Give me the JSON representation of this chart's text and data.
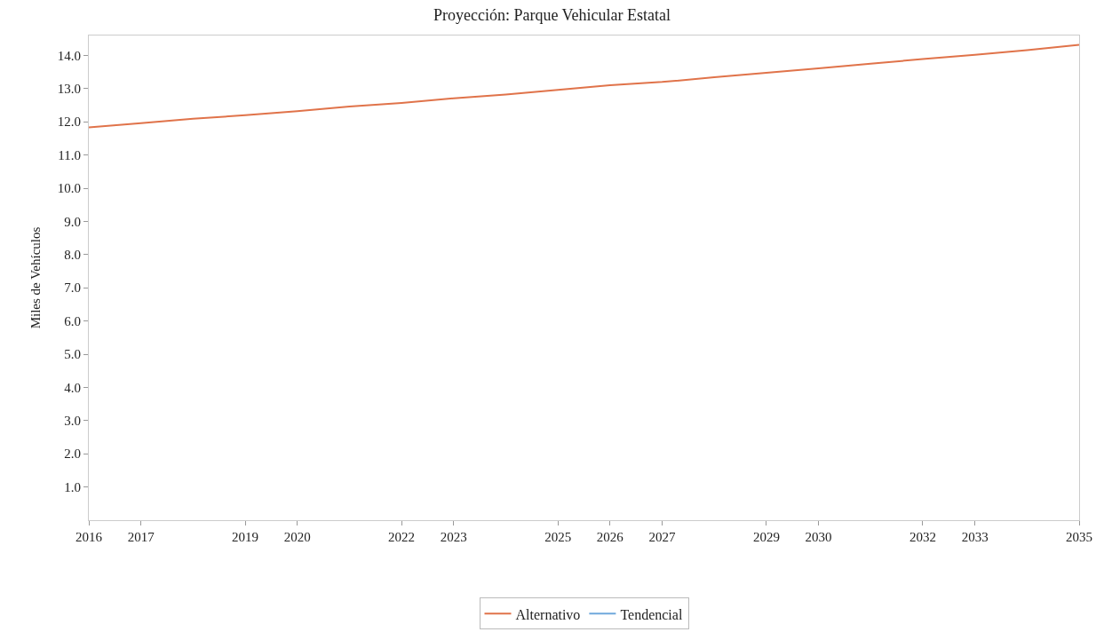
{
  "chart_data": {
    "type": "line",
    "title": "Proyección: Parque Vehicular Estatal",
    "ylabel": "Miles de Vehículos",
    "x": [
      2016,
      2017,
      2018,
      2019,
      2020,
      2021,
      2022,
      2023,
      2024,
      2025,
      2026,
      2027,
      2028,
      2029,
      2030,
      2031,
      2032,
      2033,
      2034,
      2035
    ],
    "series": [
      {
        "name": "Alternativo",
        "color": "#e0734a",
        "values": [
          11.83,
          11.96,
          12.09,
          12.2,
          12.32,
          12.46,
          12.57,
          12.71,
          12.82,
          12.96,
          13.1,
          13.2,
          13.34,
          13.48,
          13.61,
          13.75,
          13.89,
          14.02,
          14.16,
          14.32
        ]
      },
      {
        "name": "Tendencial",
        "color": "#6fa8dc",
        "values": [
          null,
          null,
          null,
          null,
          null,
          null,
          null,
          null,
          null,
          null,
          null,
          null,
          null,
          null,
          null,
          null,
          null,
          null,
          null,
          null
        ]
      }
    ],
    "xlim": [
      2016,
      2035
    ],
    "xticks": [
      2016,
      2017,
      2019,
      2020,
      2022,
      2023,
      2025,
      2026,
      2027,
      2029,
      2030,
      2032,
      2033,
      2035
    ],
    "ylim": [
      0,
      14.6
    ],
    "yticks": [
      {
        "value": 1,
        "label": "1.0"
      },
      {
        "value": 2,
        "label": "2.0"
      },
      {
        "value": 3,
        "label": "3.0"
      },
      {
        "value": 4,
        "label": "4.0"
      },
      {
        "value": 5,
        "label": "5.0"
      },
      {
        "value": 6,
        "label": "6.0"
      },
      {
        "value": 7,
        "label": "7.0"
      },
      {
        "value": 8,
        "label": "8.0"
      },
      {
        "value": 9,
        "label": "9.0"
      },
      {
        "value": 10,
        "label": "10.0"
      },
      {
        "value": 11,
        "label": "11.0"
      },
      {
        "value": 12,
        "label": "12.0"
      },
      {
        "value": 13,
        "label": "13.0"
      },
      {
        "value": 14,
        "label": "14.0"
      }
    ],
    "grid": false,
    "legend": "bottom",
    "marker": "none",
    "line_style": "solid"
  }
}
